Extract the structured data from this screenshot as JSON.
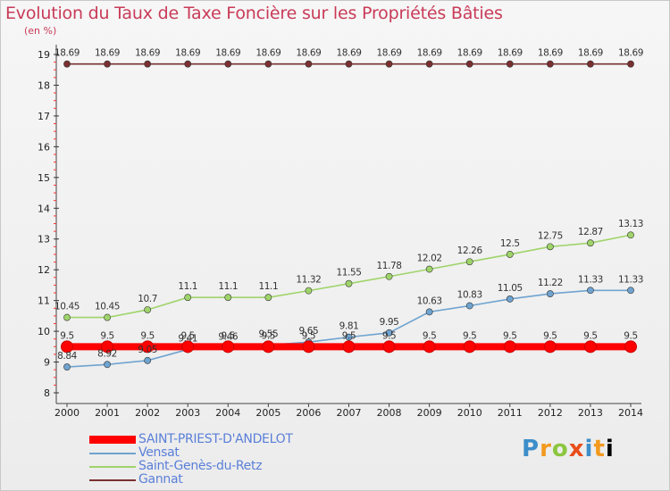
{
  "title": "Evolution du Taux de Taxe Foncière sur les Propriétés Bâties",
  "subtitle": "(en %)",
  "brand": [
    "P",
    "r",
    "o",
    "x",
    "i",
    "t",
    "i"
  ],
  "chart_data": {
    "type": "line",
    "title": "Evolution du Taux de Taxe Foncière sur les Propriétés Bâties",
    "ylabel": "(en %)",
    "ylim": [
      8,
      19
    ],
    "yticks": [
      "8",
      "9",
      "10",
      "11",
      "12",
      "13",
      "14",
      "15",
      "16",
      "17",
      "18",
      "19"
    ],
    "categories": [
      "2000",
      "2001",
      "2002",
      "2003",
      "2004",
      "2005",
      "2006",
      "2007",
      "2008",
      "2009",
      "2010",
      "2011",
      "2012",
      "2013",
      "2014"
    ],
    "series": [
      {
        "name": "SAINT-PRIEST-D'ANDELOT",
        "color": "#ff0000",
        "values": [
          9.5,
          9.5,
          9.5,
          9.5,
          9.5,
          9.5,
          9.5,
          9.5,
          9.5,
          9.5,
          9.5,
          9.5,
          9.5,
          9.5,
          9.5
        ],
        "labels": [
          "9.5",
          "9.5",
          "9.5",
          "9.5",
          "9.5",
          "9.5",
          "9.5",
          "9.5",
          "9.5",
          "9.5",
          "9.5",
          "9.5",
          "9.5",
          "9.5",
          "9.5"
        ]
      },
      {
        "name": "Vensat",
        "color": "#6fa3d0",
        "values": [
          8.84,
          8.92,
          9.05,
          9.41,
          9.46,
          9.55,
          9.65,
          9.81,
          9.95,
          10.63,
          10.83,
          11.05,
          11.22,
          11.33,
          11.33
        ],
        "labels": [
          "8.84",
          "8.92",
          "9.05",
          "9.41",
          "9.46",
          "9.55",
          "9.65",
          "9.81",
          "9.95",
          "10.63",
          "10.83",
          "11.05",
          "11.22",
          "11.33",
          "11.33"
        ]
      },
      {
        "name": "Saint-Genès-du-Retz",
        "color": "#9fd46a",
        "values": [
          10.45,
          10.45,
          10.7,
          11.1,
          11.1,
          11.1,
          11.32,
          11.55,
          11.78,
          12.02,
          12.26,
          12.5,
          12.75,
          12.87,
          13.13
        ],
        "labels": [
          "10.45",
          "10.45",
          "10.7",
          "11.1",
          "11.1",
          "11.1",
          "11.32",
          "11.55",
          "11.78",
          "12.02",
          "12.26",
          "12.5",
          "12.75",
          "12.87",
          "13.13"
        ]
      },
      {
        "name": "Gannat",
        "color": "#7a3030",
        "values": [
          18.69,
          18.69,
          18.69,
          18.69,
          18.69,
          18.69,
          18.69,
          18.69,
          18.69,
          18.69,
          18.69,
          18.69,
          18.69,
          18.69,
          18.69
        ],
        "labels": [
          "18.69",
          "18.69",
          "18.69",
          "18.69",
          "18.69",
          "18.69",
          "18.69",
          "18.69",
          "18.69",
          "18.69",
          "18.69",
          "18.69",
          "18.69",
          "18.69",
          "18.69"
        ]
      }
    ]
  }
}
